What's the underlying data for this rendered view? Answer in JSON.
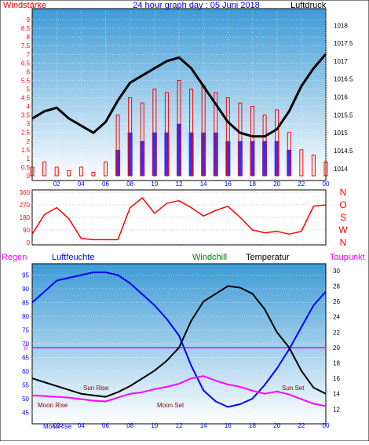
{
  "header": {
    "left_label": "Windstärke",
    "title": "24 hour graph day : 05 Juni 2018",
    "right_label": "Luftdruck"
  },
  "colors": {
    "wind": "#ff0000",
    "gust": "#0000ff",
    "pressure": "#000000",
    "humidity": "#0000ff",
    "temperature": "#000000",
    "dewpoint": "#ff00ff",
    "windchill": "#008000",
    "rain": "#ff00ff",
    "panel_top": "#4aa3d8",
    "panel_bottom": "#ffffff"
  },
  "chart_data": [
    {
      "type": "line",
      "panel": "wind_pressure",
      "title": "24 hour graph day : 05 Juni 2018",
      "xlabel": "",
      "ylabel": "Windstärke",
      "y2label": "Luftdruck",
      "x_ticks": [
        "02",
        "04",
        "06",
        "08",
        "10",
        "12",
        "14",
        "16",
        "18",
        "20",
        "22",
        "00"
      ],
      "x": [
        0,
        1,
        2,
        3,
        4,
        5,
        6,
        7,
        8,
        9,
        10,
        11,
        12,
        13,
        14,
        15,
        16,
        17,
        18,
        19,
        20,
        21,
        22,
        23,
        24
      ],
      "ylim": [
        0,
        9.5
      ],
      "y_ticks": [
        0,
        0.5,
        1,
        1.5,
        2,
        2.5,
        3,
        3.5,
        4,
        4.5,
        5,
        5.5,
        6,
        6.5,
        7,
        7.5,
        8,
        8.5,
        9
      ],
      "y2lim": [
        1013.8,
        1018.4
      ],
      "y2_ticks": [
        1014,
        1014.5,
        1015,
        1015.5,
        1016,
        1016.5,
        1017,
        1017.5,
        1018
      ],
      "series": [
        {
          "values": [
            1015.4,
            1015.6,
            1015.7,
            1015.4,
            1015.2,
            1015.0,
            1015.3,
            1015.9,
            1016.4,
            1016.6,
            1016.8,
            1017.0,
            1017.1,
            1016.8,
            1016.3,
            1015.8,
            1015.3,
            1015.0,
            1014.9,
            1014.9,
            1015.1,
            1015.6,
            1016.3,
            1016.8,
            1017.2
          ]
        },
        {
          "values": [
            0.5,
            0.8,
            0.5,
            0.3,
            0.5,
            0.2,
            0.8,
            3.5,
            4.5,
            4.2,
            5.0,
            4.8,
            5.5,
            5.0,
            5.2,
            4.8,
            4.5,
            4.2,
            4.0,
            3.5,
            3.8,
            2.5,
            1.5,
            1.2,
            0.8
          ]
        },
        {
          "values": [
            0,
            0,
            0,
            0,
            0,
            0,
            0,
            1.5,
            2.5,
            2.0,
            2.5,
            2.5,
            3.0,
            2.5,
            2.5,
            2.5,
            2.0,
            2.0,
            2.0,
            2.0,
            2.0,
            1.5,
            0,
            0,
            0
          ]
        }
      ]
    },
    {
      "type": "line",
      "panel": "wind_direction",
      "xlabel": "",
      "ylabel": "",
      "ylim": [
        0,
        360
      ],
      "y_ticks": [
        0,
        90,
        180,
        270,
        360
      ],
      "compass_labels": [
        "N",
        "W",
        "S",
        "O",
        "N"
      ],
      "x": [
        0,
        1,
        2,
        3,
        4,
        5,
        6,
        7,
        8,
        9,
        10,
        11,
        12,
        13,
        14,
        15,
        16,
        17,
        18,
        19,
        20,
        21,
        22,
        23,
        24
      ],
      "series": [
        {
          "values": [
            60,
            200,
            250,
            170,
            30,
            20,
            20,
            20,
            250,
            320,
            210,
            280,
            300,
            250,
            190,
            230,
            260,
            180,
            90,
            70,
            80,
            60,
            80,
            260,
            270
          ]
        }
      ]
    },
    {
      "type": "line",
      "panel": "humidity_temperature",
      "legend": {
        "rain": "Regen",
        "humidity": "Luftfeuchte",
        "windchill": "Windchill",
        "temperature": "Temperatur",
        "dewpoint": "Taupunkt"
      },
      "annotations": [
        "Moon Rise",
        "Sun Rise",
        "Moon Set",
        "Sun Set",
        "MoonRise"
      ],
      "ylim": [
        42,
        98
      ],
      "y_ticks": [
        45,
        50,
        55,
        60,
        65,
        70,
        75,
        80,
        85,
        90,
        95
      ],
      "y2lim": [
        10.5,
        30.5
      ],
      "y2_ticks": [
        12,
        14,
        16,
        18,
        20,
        22,
        24,
        26,
        28,
        30
      ],
      "rain_tick": "0",
      "x": [
        0,
        1,
        2,
        3,
        4,
        5,
        6,
        7,
        8,
        9,
        10,
        11,
        12,
        13,
        14,
        15,
        16,
        17,
        18,
        19,
        20,
        21,
        22,
        23,
        24
      ],
      "series": [
        {
          "values": [
            85,
            89,
            93,
            94,
            95,
            96,
            96,
            95,
            92,
            88,
            84,
            79,
            73,
            62,
            53,
            49,
            47,
            48,
            50,
            55,
            61,
            68,
            76,
            84,
            89
          ]
        },
        {
          "values": [
            16.0,
            15.5,
            15.0,
            14.5,
            14.0,
            13.8,
            13.6,
            14.2,
            15.0,
            16.0,
            17.0,
            18.3,
            20.0,
            23.5,
            26.0,
            27.0,
            28.0,
            27.8,
            27.0,
            25.0,
            22.0,
            20.0,
            17.0,
            14.8,
            14.0
          ]
        },
        {
          "values": [
            13.8,
            13.7,
            13.6,
            13.5,
            13.3,
            13.1,
            13.0,
            13.5,
            14.0,
            14.2,
            14.6,
            14.9,
            15.3,
            16.0,
            16.3,
            15.7,
            15.2,
            14.9,
            14.4,
            14.0,
            14.3,
            13.9,
            13.3,
            12.7,
            12.4
          ]
        }
      ]
    }
  ]
}
